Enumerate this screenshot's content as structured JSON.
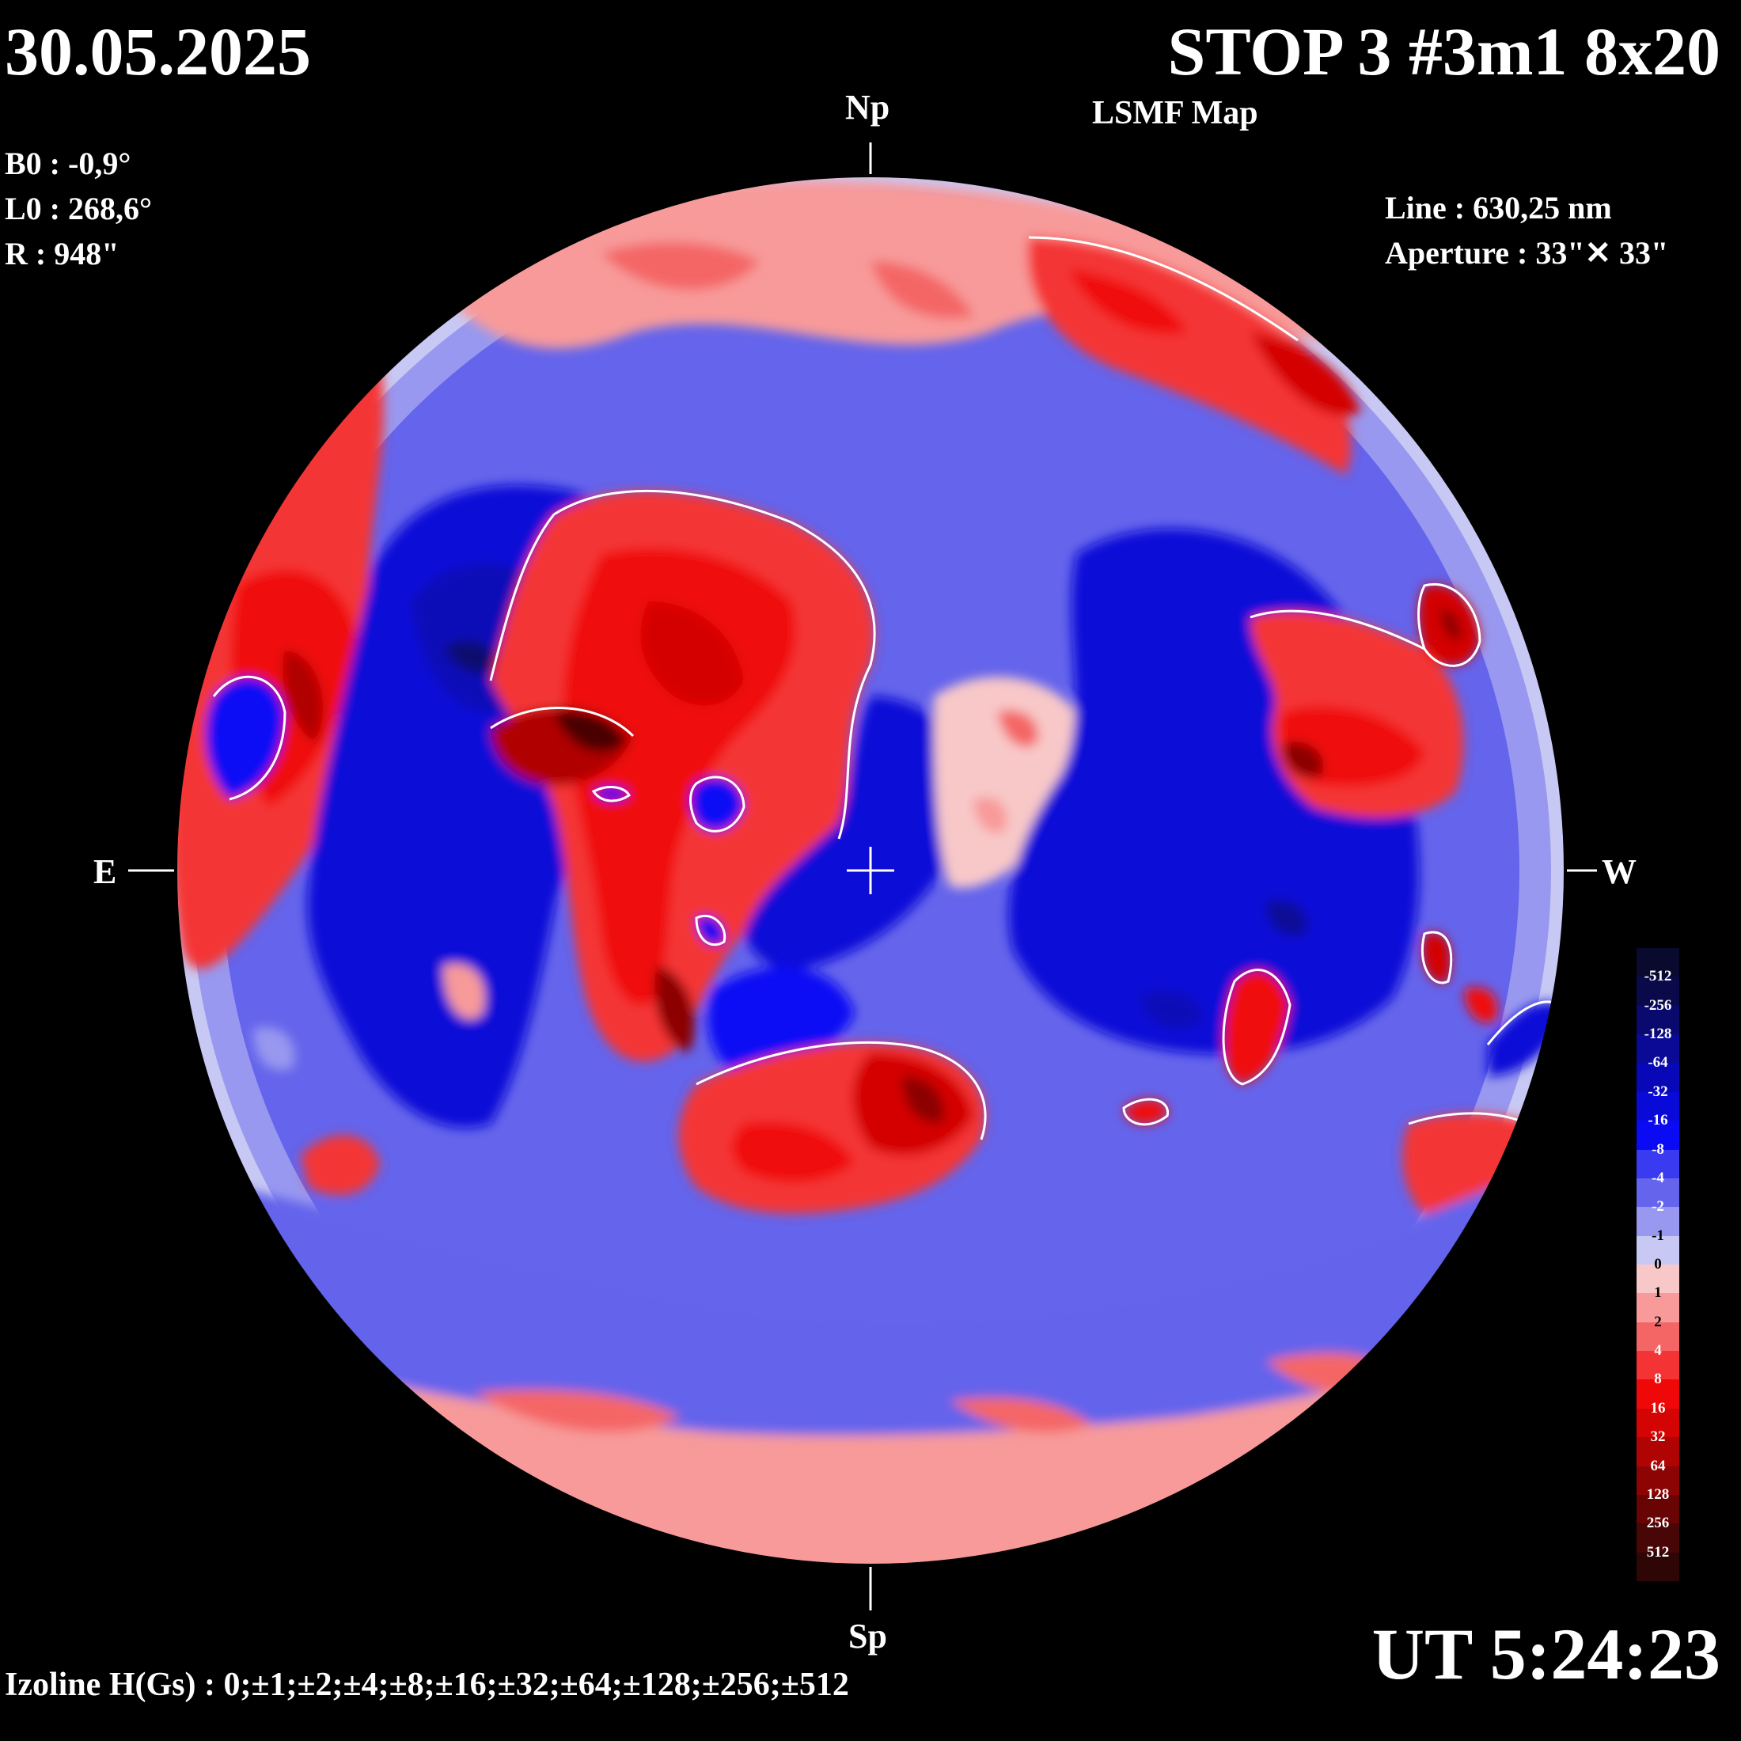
{
  "header": {
    "date": "30.05.2025",
    "title": "STOP 3 #3m1 8x20",
    "subtitle": "LSMF  Map"
  },
  "params": {
    "b0": "B0 : -0,9°",
    "l0": "L0 : 268,6°",
    "r": "R  : 948\""
  },
  "instrument": {
    "line": "Line :  630,25 nm",
    "aperture": "Aperture : 33\"✕ 33\""
  },
  "directions": {
    "north": "Np",
    "south": "Sp",
    "east": "E",
    "west": "W"
  },
  "time": "UT 5:24:23",
  "izoline": "Izoline H(Gs) : 0;±1;±2;±4;±8;±16;±32;±64;±128;±256;±512",
  "legend": {
    "levels": [
      {
        "label": "-512",
        "color": "#0a0a2e"
      },
      {
        "label": "-256",
        "color": "#0a0a4a"
      },
      {
        "label": "-128",
        "color": "#0a0a6e"
      },
      {
        "label": "-64",
        "color": "#0a0a96"
      },
      {
        "label": "-32",
        "color": "#0808b8"
      },
      {
        "label": "-16",
        "color": "#0a0ad8"
      },
      {
        "label": "-8",
        "color": "#0a0af5"
      },
      {
        "label": "-4",
        "color": "#3a3af0"
      },
      {
        "label": "-2",
        "color": "#6464ec"
      },
      {
        "label": "-1",
        "color": "#9898f0"
      },
      {
        "label": "0",
        "color": "#c8c8f4"
      },
      {
        "label": "1",
        "color": "#f8c8c8"
      },
      {
        "label": "2",
        "color": "#f89a9a"
      },
      {
        "label": "4",
        "color": "#f46666"
      },
      {
        "label": "8",
        "color": "#f43434"
      },
      {
        "label": "16",
        "color": "#f00808"
      },
      {
        "label": "32",
        "color": "#d40404"
      },
      {
        "label": "64",
        "color": "#b00404"
      },
      {
        "label": "128",
        "color": "#8c0404"
      },
      {
        "label": "256",
        "color": "#680404"
      },
      {
        "label": "512",
        "color": "#480606"
      },
      {
        "label": "",
        "color": "#2e0606"
      }
    ]
  },
  "colors": {
    "background": "#000000",
    "text": "#ffffff",
    "contour": "#ffffff"
  }
}
